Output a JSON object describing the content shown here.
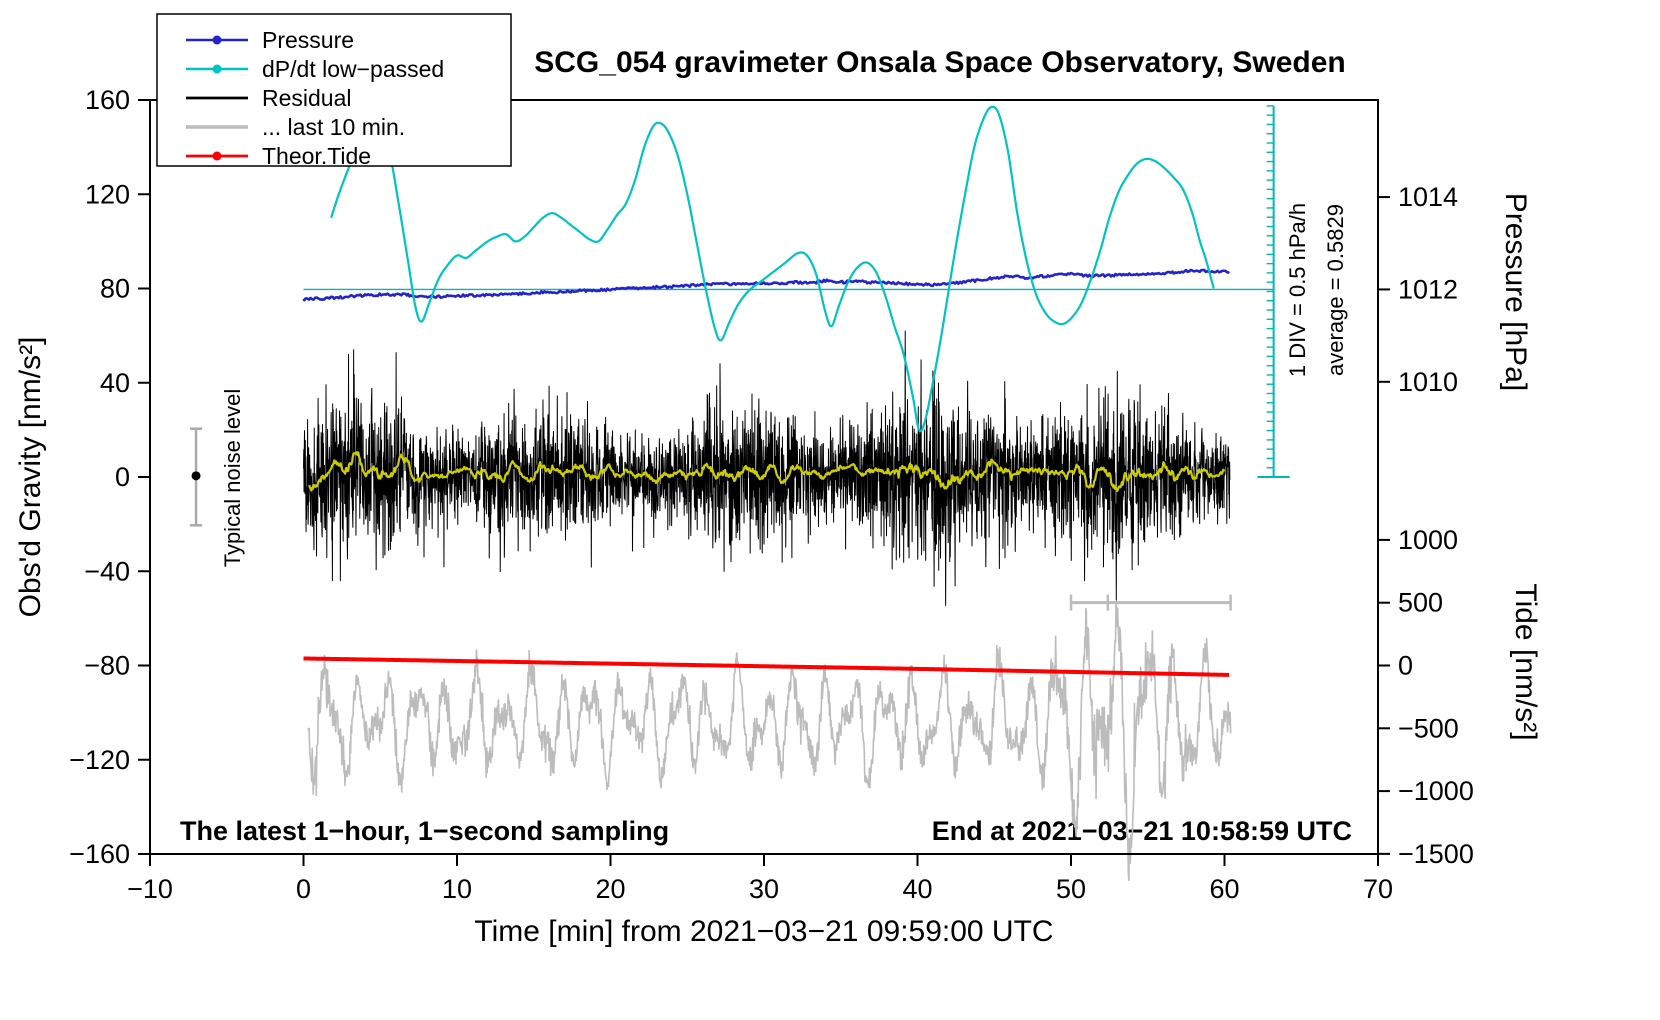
{
  "page": {
    "background": "#ffffff"
  },
  "title": "SCG_054 gravimeter Onsala Space Observatory, Sweden",
  "footer": {
    "left": "The latest 1−hour, 1−second sampling",
    "right": "End at 2021−03−21 10:58:59 UTC"
  },
  "annotations": {
    "noise_label": "Typical noise level",
    "div_label": "1 DIV = 0.5 hPa/h",
    "average_label": "average = 0.5829"
  },
  "axes": {
    "x": {
      "label": "Time [min] from 2021−03−21 09:59:00 UTC",
      "min": -10,
      "max": 70,
      "tick_step": 10
    },
    "y_left": {
      "label": "Obs'd Gravity [nm/s²]",
      "min": -160,
      "max": 160,
      "tick_step": 40
    },
    "y_right_pressure": {
      "label": "Pressure [hPa]",
      "ticks": [
        1014,
        1012,
        1010
      ],
      "units_at_1012": 79.6,
      "units_per_hpa": 19.6
    },
    "y_right_tide": {
      "label": "Tide [nm/s²]",
      "ticks": [
        1000,
        500,
        0,
        -500,
        -1000,
        -1500
      ],
      "units_at_0": -80,
      "units_per_nms2": 0.0533
    }
  },
  "legend": {
    "entries": [
      {
        "label": "Pressure",
        "color": "#2424cc",
        "width": 2.4,
        "marker": true
      },
      {
        "label": "dP/dt low−passed",
        "color": "#00c3c3",
        "width": 2.4,
        "marker": true
      },
      {
        "label": "Residual",
        "color": "#000000",
        "width": 2.8,
        "marker": false
      },
      {
        "label": "... last 10 min.",
        "color": "#bcbcbc",
        "width": 3.4,
        "marker": false
      },
      {
        "label": "Theor.Tide",
        "color": "#ff0000",
        "width": 2.8,
        "marker": true
      }
    ]
  },
  "chart_data": {
    "type": "line",
    "title": "SCG_054 gravimeter Onsala Space Observatory, Sweden",
    "x_unit": "minutes from 2021-03-21 09:59:00 UTC",
    "x_range": [
      -10,
      70
    ],
    "y_left_range": [
      -160,
      160
    ],
    "grid": false,
    "legend_position": "top-left",
    "seed": 20210321,
    "series": [
      {
        "role": "pressure",
        "name": "Pressure",
        "unit": "hPa",
        "color": "#2424cc",
        "width": 2.6,
        "jitter_units": 0.55,
        "points": [
          [
            0,
            1011.79
          ],
          [
            2,
            1011.82
          ],
          [
            4,
            1011.87
          ],
          [
            6,
            1011.89
          ],
          [
            7,
            1011.87
          ],
          [
            8,
            1011.84
          ],
          [
            10,
            1011.86
          ],
          [
            12,
            1011.88
          ],
          [
            14,
            1011.91
          ],
          [
            16,
            1011.94
          ],
          [
            18,
            1011.97
          ],
          [
            20,
            1012.0
          ],
          [
            22,
            1012.03
          ],
          [
            24,
            1012.06
          ],
          [
            26,
            1012.1
          ],
          [
            27,
            1012.12
          ],
          [
            28,
            1012.11
          ],
          [
            30,
            1012.13
          ],
          [
            32,
            1012.15
          ],
          [
            33,
            1012.14
          ],
          [
            34,
            1012.19
          ],
          [
            35,
            1012.16
          ],
          [
            36,
            1012.17
          ],
          [
            38,
            1012.14
          ],
          [
            40,
            1012.11
          ],
          [
            41,
            1012.1
          ],
          [
            42,
            1012.12
          ],
          [
            44,
            1012.2
          ],
          [
            45,
            1012.25
          ],
          [
            46,
            1012.28
          ],
          [
            47,
            1012.26
          ],
          [
            48,
            1012.28
          ],
          [
            49,
            1012.31
          ],
          [
            50,
            1012.33
          ],
          [
            51,
            1012.29
          ],
          [
            52,
            1012.3
          ],
          [
            53,
            1012.31
          ],
          [
            54,
            1012.33
          ],
          [
            55,
            1012.34
          ],
          [
            56,
            1012.35
          ],
          [
            57,
            1012.37
          ],
          [
            58,
            1012.41
          ],
          [
            59,
            1012.39
          ],
          [
            60.3,
            1012.38
          ]
        ]
      },
      {
        "role": "dpdt",
        "name": "dP/dt low−passed",
        "color": "#00c3c3",
        "width": 2.2,
        "unit": "display units; scale: 1 DIV = 0.5 hPa/h, average = 0.5829",
        "points_display_units": [
          [
            1.8,
            110
          ],
          [
            2.3,
            120
          ],
          [
            3,
            132
          ],
          [
            3.8,
            144
          ],
          [
            4.5,
            152
          ],
          [
            5,
            150
          ],
          [
            5.6,
            138
          ],
          [
            6.2,
            116
          ],
          [
            6.8,
            92
          ],
          [
            7.3,
            72
          ],
          [
            7.7,
            66
          ],
          [
            8.2,
            74
          ],
          [
            8.8,
            84
          ],
          [
            9.4,
            90
          ],
          [
            10,
            94
          ],
          [
            10.6,
            93
          ],
          [
            11.2,
            96
          ],
          [
            12,
            100
          ],
          [
            12.6,
            102
          ],
          [
            13.2,
            103
          ],
          [
            13.8,
            100
          ],
          [
            14.4,
            102
          ],
          [
            15,
            106
          ],
          [
            15.6,
            110
          ],
          [
            16.2,
            112
          ],
          [
            16.8,
            110
          ],
          [
            17.4,
            107
          ],
          [
            18,
            104
          ],
          [
            18.6,
            101
          ],
          [
            19.2,
            100
          ],
          [
            19.8,
            105
          ],
          [
            20.4,
            111
          ],
          [
            21,
            116
          ],
          [
            21.6,
            126
          ],
          [
            22.2,
            140
          ],
          [
            22.8,
            149
          ],
          [
            23.3,
            150
          ],
          [
            23.8,
            146
          ],
          [
            24.4,
            136
          ],
          [
            25,
            120
          ],
          [
            25.6,
            100
          ],
          [
            26.2,
            80
          ],
          [
            26.8,
            63
          ],
          [
            27.2,
            58
          ],
          [
            27.7,
            65
          ],
          [
            28.3,
            73
          ],
          [
            29,
            79
          ],
          [
            29.8,
            83
          ],
          [
            30.6,
            87
          ],
          [
            31.4,
            91
          ],
          [
            32.2,
            95
          ],
          [
            32.8,
            94
          ],
          [
            33.4,
            86
          ],
          [
            34,
            70
          ],
          [
            34.4,
            64
          ],
          [
            34.9,
            73
          ],
          [
            35.5,
            83
          ],
          [
            36.1,
            89
          ],
          [
            36.7,
            91
          ],
          [
            37.3,
            87
          ],
          [
            37.9,
            77
          ],
          [
            38.5,
            64
          ],
          [
            39.1,
            52
          ],
          [
            39.7,
            34
          ],
          [
            40.1,
            20
          ],
          [
            40.5,
            24
          ],
          [
            41,
            40
          ],
          [
            41.5,
            58
          ],
          [
            42,
            78
          ],
          [
            42.5,
            98
          ],
          [
            43.1,
            120
          ],
          [
            43.7,
            140
          ],
          [
            44.3,
            152
          ],
          [
            44.8,
            157
          ],
          [
            45.3,
            154
          ],
          [
            45.9,
            138
          ],
          [
            46.5,
            112
          ],
          [
            47.1,
            92
          ],
          [
            47.7,
            78
          ],
          [
            48.3,
            70
          ],
          [
            48.9,
            66
          ],
          [
            49.5,
            65
          ],
          [
            50.1,
            68
          ],
          [
            50.7,
            74
          ],
          [
            51.3,
            84
          ],
          [
            51.9,
            96
          ],
          [
            52.5,
            110
          ],
          [
            53.1,
            121
          ],
          [
            53.7,
            128
          ],
          [
            54.3,
            133
          ],
          [
            54.9,
            135
          ],
          [
            55.5,
            134
          ],
          [
            56.1,
            131
          ],
          [
            56.7,
            127
          ],
          [
            57.3,
            122
          ],
          [
            57.9,
            112
          ],
          [
            58.4,
            100
          ],
          [
            58.8,
            92
          ],
          [
            59.3,
            80
          ]
        ]
      },
      {
        "role": "residual",
        "name": "Residual",
        "unit": "nm/s²",
        "color": "#000000",
        "width": 1,
        "generator": {
          "t_start": 0,
          "t_end": 60.35,
          "samples_per_min": 60,
          "sigma": 13,
          "spike_prob": 0.012,
          "spike_gain": 2.1,
          "clip": 62
        }
      },
      {
        "role": "residual_smooth",
        "name": "Residual low−passed",
        "color": "#cccc00",
        "width": 2.2,
        "derived_from": "Residual",
        "window_samples": 41,
        "offset_units": 1.5
      },
      {
        "role": "last10",
        "name": "... last 10 min.",
        "color": "#bcbcbc",
        "width": 1.6,
        "unit": "display units (magnified residual of the last 10 minutes)",
        "generator": {
          "t_start": 0.3,
          "t_end": 60.4,
          "samples_per_min": 30,
          "mean": -104,
          "components": [
            [
              13,
              1.9
            ],
            [
              8,
              1.13
            ],
            [
              5,
              3.4
            ]
          ],
          "noise": 3.5,
          "burst_center": 53,
          "burst_width": 16,
          "burst_gain": 1.4,
          "start_center": 0.5,
          "start_width": 2,
          "start_gain": 0.4
        }
      },
      {
        "role": "tide",
        "name": "Theor.Tide",
        "unit": "nm/s² (tide axis)",
        "color": "#ff0000",
        "width": 4,
        "points": [
          [
            0,
            56
          ],
          [
            10,
            36
          ],
          [
            20,
            15
          ],
          [
            30,
            -6
          ],
          [
            40,
            -27
          ],
          [
            50,
            -51
          ],
          [
            60.3,
            -75
          ]
        ]
      }
    ],
    "average_line": {
      "value_units": 79.6,
      "x_from": 0,
      "x_to": 63.2,
      "color": "#00b7b7"
    },
    "div_ruler": {
      "x": 63.2,
      "u_from": 0,
      "u_to": 157.5,
      "n_ticks": 40,
      "color": "#00b7b7"
    },
    "last10_marker": {
      "u": -53.3,
      "x_from": 50,
      "x_to": 60.4,
      "tick_xs": [
        50,
        52.4,
        60.4
      ],
      "color": "#bcbcbc"
    },
    "noise_bar": {
      "x": -7,
      "u_from": -20.5,
      "u_to": 20.5,
      "dot_u": 0.5,
      "color": "#aaaaaa"
    }
  }
}
